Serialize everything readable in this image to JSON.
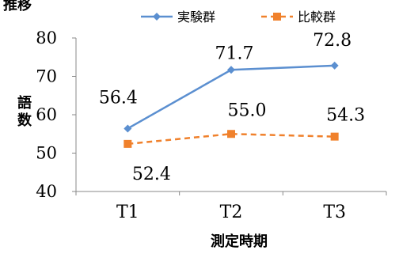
{
  "chart_data": {
    "type": "line",
    "title": "推移",
    "xlabel": "測定時期",
    "ylabel": "語数",
    "categories": [
      "T1",
      "T2",
      "T3"
    ],
    "ylim": [
      40,
      80
    ],
    "yticks": [
      40,
      50,
      60,
      70,
      80
    ],
    "grid": false,
    "legend_position": "top",
    "series": [
      {
        "name": "実験群",
        "values": [
          56.4,
          71.7,
          72.8
        ],
        "labels": [
          "56.4",
          "71.7",
          "72.8"
        ],
        "color": "#5b8fd0",
        "marker": "diamond",
        "dash": "solid"
      },
      {
        "name": "比較群",
        "values": [
          52.4,
          55.0,
          54.3
        ],
        "labels": [
          "52.4",
          "55.0",
          "54.3"
        ],
        "color": "#f0812c",
        "marker": "square",
        "dash": "dashed"
      }
    ]
  }
}
